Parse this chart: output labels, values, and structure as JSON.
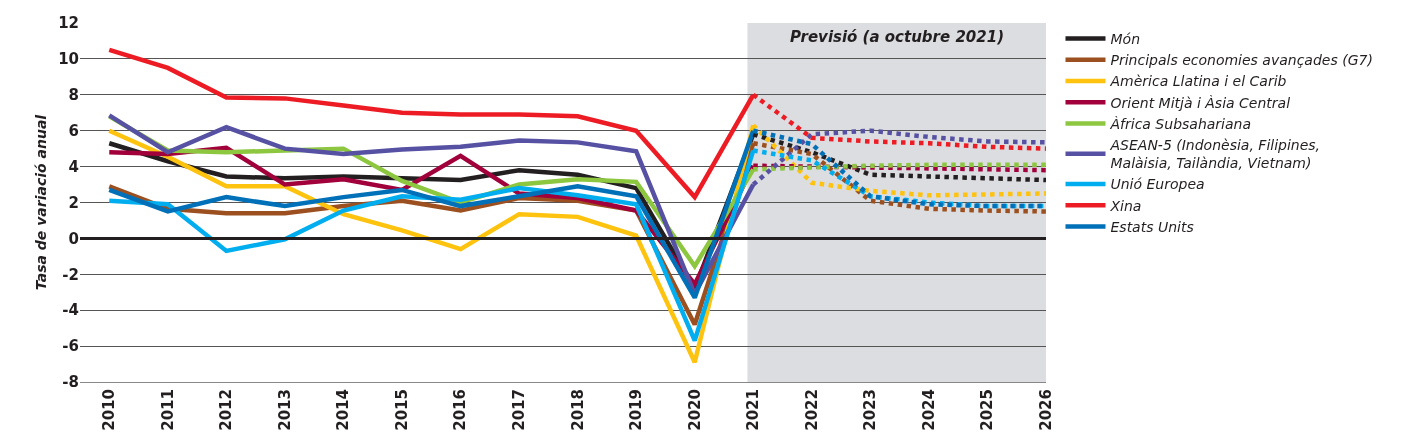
{
  "chart_data": {
    "type": "line",
    "ylabel": "Tasa de variació anual",
    "xlim": [
      2009.5,
      2026
    ],
    "xticks": [
      2010,
      2011,
      2012,
      2013,
      2014,
      2015,
      2016,
      2017,
      2018,
      2019,
      2020,
      2021,
      2022,
      2023,
      2024,
      2025,
      2026
    ],
    "ylim": [
      -8,
      12
    ],
    "yticks": [
      -8,
      -6,
      -4,
      -2,
      0,
      2,
      4,
      6,
      8,
      10,
      12
    ],
    "grid": "y",
    "legend": "right",
    "marker": "none",
    "bands": [
      {
        "axis": "x",
        "from": 2020.9,
        "to": 2026,
        "label": "Previsió (a octubre 2021)",
        "color": "#dcdde0"
      }
    ],
    "ref_lines": [
      {
        "axis": "y",
        "value": 0,
        "color": "#231f20"
      }
    ],
    "series": [
      {
        "name": "Món",
        "color": "#231f20",
        "line_style": "solid",
        "x": [
          2010,
          2011,
          2012,
          2013,
          2014,
          2015,
          2016,
          2017,
          2018,
          2019,
          2020,
          2021
        ],
        "values": [
          5.3,
          4.3,
          3.45,
          3.35,
          3.45,
          3.35,
          3.25,
          3.8,
          3.55,
          2.8,
          -2.8,
          5.8
        ]
      },
      {
        "name": "Principals economies avançades (G7)",
        "color": "#9c4f1f",
        "line_style": "solid",
        "x": [
          2010,
          2011,
          2012,
          2013,
          2014,
          2015,
          2016,
          2017,
          2018,
          2019,
          2020,
          2021
        ],
        "values": [
          2.9,
          1.65,
          1.4,
          1.4,
          1.8,
          2.1,
          1.55,
          2.25,
          2.1,
          1.55,
          -4.8,
          5.3
        ]
      },
      {
        "name": "Amèrica Llatina i el Carib",
        "color": "#fec30e",
        "line_style": "solid",
        "x": [
          2010,
          2011,
          2012,
          2013,
          2014,
          2015,
          2016,
          2017,
          2018,
          2019,
          2020,
          2021
        ],
        "values": [
          6.0,
          4.55,
          2.9,
          2.9,
          1.35,
          0.45,
          -0.6,
          1.35,
          1.2,
          0.15,
          -6.9,
          6.3
        ]
      },
      {
        "name": "Orient Mitjà i Àsia Central",
        "color": "#a1003a",
        "line_style": "solid",
        "x": [
          2010,
          2011,
          2012,
          2013,
          2014,
          2015,
          2016,
          2017,
          2018,
          2019,
          2020,
          2021
        ],
        "values": [
          4.8,
          4.7,
          5.05,
          3.0,
          3.3,
          2.7,
          4.6,
          2.5,
          2.25,
          1.55,
          -2.55,
          4.05
        ]
      },
      {
        "name": "Àfrica Subsahariana",
        "color": "#8dc63f",
        "line_style": "solid",
        "x": [
          2010,
          2011,
          2012,
          2013,
          2014,
          2015,
          2016,
          2017,
          2018,
          2019,
          2020,
          2021
        ],
        "values": [
          6.8,
          4.9,
          4.8,
          4.9,
          5.0,
          3.2,
          2.0,
          3.0,
          3.3,
          3.15,
          -1.55,
          3.85
        ]
      },
      {
        "name": "ASEAN-5 (Indonèsia, Filipines,\nMalàisia, Tailàndia, Vietnam)",
        "color": "#5651a3",
        "line_style": "solid",
        "x": [
          2010,
          2011,
          2012,
          2013,
          2014,
          2015,
          2016,
          2017,
          2018,
          2019,
          2020,
          2021
        ],
        "values": [
          6.85,
          4.8,
          6.2,
          5.0,
          4.7,
          4.95,
          5.1,
          5.45,
          5.35,
          4.85,
          -3.1,
          3.0
        ]
      },
      {
        "name": "Unió Europea",
        "color": "#00aeef",
        "line_style": "solid",
        "x": [
          2010,
          2011,
          2012,
          2013,
          2014,
          2015,
          2016,
          2017,
          2018,
          2019,
          2020,
          2021
        ],
        "values": [
          2.1,
          1.9,
          -0.7,
          -0.05,
          1.55,
          2.35,
          2.15,
          2.8,
          2.4,
          1.9,
          -5.7,
          4.9
        ]
      },
      {
        "name": "Xina",
        "color": "#ed1c24",
        "line_style": "solid",
        "x": [
          2010,
          2011,
          2012,
          2013,
          2014,
          2015,
          2016,
          2017,
          2018,
          2019,
          2020,
          2021
        ],
        "values": [
          10.5,
          9.5,
          7.85,
          7.8,
          7.4,
          7.0,
          6.9,
          6.9,
          6.8,
          6.0,
          2.3,
          8.0
        ]
      },
      {
        "name": "Estats Units",
        "color": "#0070b8",
        "line_style": "solid",
        "x": [
          2010,
          2011,
          2012,
          2013,
          2014,
          2015,
          2016,
          2017,
          2018,
          2019,
          2020,
          2021
        ],
        "values": [
          2.7,
          1.5,
          2.3,
          1.8,
          2.3,
          2.7,
          1.8,
          2.35,
          2.9,
          2.35,
          -3.3,
          6.0
        ]
      },
      {
        "color": "#231f20",
        "line_style": "dotted",
        "x": [
          2021,
          2022,
          2023,
          2024,
          2025,
          2026
        ],
        "values": [
          5.8,
          4.8,
          3.55,
          3.45,
          3.35,
          3.25
        ]
      },
      {
        "color": "#9c4f1f",
        "line_style": "dotted",
        "x": [
          2021,
          2022,
          2023,
          2024,
          2025,
          2026
        ],
        "values": [
          5.3,
          4.7,
          2.1,
          1.65,
          1.55,
          1.5
        ]
      },
      {
        "color": "#fec30e",
        "line_style": "dotted",
        "x": [
          2021,
          2022,
          2023,
          2024,
          2025,
          2026
        ],
        "values": [
          6.3,
          3.1,
          2.65,
          2.4,
          2.45,
          2.5
        ]
      },
      {
        "color": "#a1003a",
        "line_style": "dotted",
        "x": [
          2021,
          2022,
          2023,
          2024,
          2025,
          2026
        ],
        "values": [
          4.05,
          4.0,
          3.95,
          3.9,
          3.85,
          3.8
        ]
      },
      {
        "color": "#8dc63f",
        "line_style": "dotted",
        "x": [
          2021,
          2022,
          2023,
          2024,
          2025,
          2026
        ],
        "values": [
          3.85,
          3.95,
          4.05,
          4.1,
          4.1,
          4.1
        ]
      },
      {
        "color": "#5651a3",
        "line_style": "dotted",
        "x": [
          2021,
          2022,
          2023,
          2024,
          2025,
          2026
        ],
        "values": [
          3.0,
          5.8,
          6.0,
          5.65,
          5.4,
          5.35
        ]
      },
      {
        "color": "#00aeef",
        "line_style": "dotted",
        "x": [
          2021,
          2022,
          2023,
          2024,
          2025,
          2026
        ],
        "values": [
          4.9,
          4.35,
          2.35,
          2.0,
          1.8,
          1.8
        ]
      },
      {
        "color": "#ed1c24",
        "line_style": "dotted",
        "x": [
          2021,
          2022,
          2023,
          2024,
          2025,
          2026
        ],
        "values": [
          8.0,
          5.6,
          5.4,
          5.3,
          5.1,
          5.0
        ]
      },
      {
        "color": "#0070b8",
        "line_style": "dotted",
        "x": [
          2021,
          2022,
          2023,
          2024,
          2025,
          2026
        ],
        "values": [
          6.0,
          5.25,
          2.35,
          1.9,
          1.8,
          1.8
        ]
      }
    ]
  }
}
